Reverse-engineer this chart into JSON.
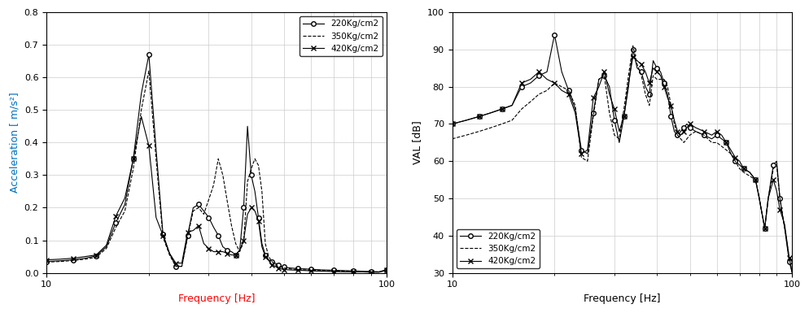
{
  "left": {
    "title": "",
    "xlabel": "Frequency [Hz]",
    "ylabel": "Acceleration [ m/s²]",
    "ylabel_color": "#0070c0",
    "xlabel_color": "#ff0000",
    "xlim": [
      10,
      100
    ],
    "ylim": [
      0,
      0.8
    ],
    "yticks": [
      0,
      0.1,
      0.2,
      0.3,
      0.4,
      0.5,
      0.6,
      0.7,
      0.8
    ],
    "legend": [
      "220Kg/cm2",
      "350Kg/cm2",
      "420Kg/cm2"
    ],
    "series": {
      "s220": {
        "x": [
          10,
          11,
          12,
          13,
          14,
          15,
          16,
          17,
          18,
          19,
          20,
          21,
          22,
          23,
          24,
          25,
          26,
          27,
          28,
          29,
          30,
          31,
          32,
          33,
          34,
          35,
          36,
          37,
          38,
          39,
          40,
          41,
          42,
          43,
          44,
          45,
          46,
          47,
          48,
          49,
          50,
          52,
          55,
          58,
          60,
          65,
          70,
          75,
          80,
          85,
          90,
          95,
          100
        ],
        "y": [
          0.035,
          0.037,
          0.04,
          0.045,
          0.052,
          0.08,
          0.155,
          0.21,
          0.35,
          0.55,
          0.67,
          0.38,
          0.12,
          0.06,
          0.02,
          0.02,
          0.115,
          0.2,
          0.21,
          0.19,
          0.17,
          0.14,
          0.115,
          0.08,
          0.07,
          0.065,
          0.055,
          0.07,
          0.2,
          0.45,
          0.3,
          0.25,
          0.17,
          0.09,
          0.055,
          0.04,
          0.035,
          0.03,
          0.025,
          0.02,
          0.018,
          0.015,
          0.013,
          0.012,
          0.011,
          0.009,
          0.008,
          0.007,
          0.006,
          0.005,
          0.004,
          0.003,
          0.01
        ],
        "style": "-",
        "marker": "o",
        "color": "#000000"
      },
      "s350": {
        "x": [
          10,
          11,
          12,
          13,
          14,
          15,
          16,
          17,
          18,
          19,
          20,
          21,
          22,
          23,
          24,
          25,
          26,
          27,
          28,
          29,
          30,
          31,
          32,
          33,
          34,
          35,
          36,
          37,
          38,
          39,
          40,
          41,
          42,
          43,
          44,
          45,
          46,
          47,
          48,
          49,
          50,
          52,
          55,
          58,
          60,
          65,
          70,
          75,
          80,
          85,
          90,
          95,
          100
        ],
        "y": [
          0.033,
          0.035,
          0.038,
          0.042,
          0.048,
          0.075,
          0.14,
          0.19,
          0.32,
          0.5,
          0.62,
          0.35,
          0.11,
          0.055,
          0.02,
          0.02,
          0.11,
          0.19,
          0.2,
          0.18,
          0.225,
          0.27,
          0.35,
          0.3,
          0.22,
          0.145,
          0.09,
          0.065,
          0.095,
          0.28,
          0.32,
          0.35,
          0.33,
          0.25,
          0.09,
          0.05,
          0.035,
          0.025,
          0.02,
          0.018,
          0.015,
          0.012,
          0.01,
          0.009,
          0.008,
          0.007,
          0.006,
          0.005,
          0.004,
          0.004,
          0.003,
          0.003,
          0.008
        ],
        "style": "--",
        "marker": null,
        "color": "#000000"
      },
      "s420": {
        "x": [
          10,
          11,
          12,
          13,
          14,
          15,
          16,
          17,
          18,
          19,
          20,
          21,
          22,
          23,
          24,
          25,
          26,
          27,
          28,
          29,
          30,
          31,
          32,
          33,
          34,
          35,
          36,
          37,
          38,
          39,
          40,
          41,
          42,
          43,
          44,
          45,
          46,
          47,
          48,
          49,
          50,
          52,
          55,
          58,
          60,
          65,
          70,
          75,
          80,
          85,
          90,
          95,
          100
        ],
        "y": [
          0.04,
          0.042,
          0.045,
          0.05,
          0.055,
          0.085,
          0.175,
          0.23,
          0.35,
          0.48,
          0.39,
          0.17,
          0.115,
          0.06,
          0.03,
          0.03,
          0.125,
          0.13,
          0.145,
          0.09,
          0.075,
          0.065,
          0.065,
          0.065,
          0.06,
          0.055,
          0.055,
          0.07,
          0.1,
          0.18,
          0.2,
          0.19,
          0.16,
          0.08,
          0.05,
          0.038,
          0.025,
          0.02,
          0.015,
          0.012,
          0.01,
          0.009,
          0.008,
          0.007,
          0.006,
          0.005,
          0.004,
          0.003,
          0.003,
          0.003,
          0.002,
          0.002,
          0.008
        ],
        "style": "-",
        "marker": "x",
        "color": "#000000"
      }
    }
  },
  "right": {
    "title": "",
    "xlabel": "Frequency [Hz]",
    "xlabel_color": "#000000",
    "ylabel": "VAL [dB]",
    "ylabel_color": "#000000",
    "xlim": [
      10,
      100
    ],
    "ylim": [
      30,
      100
    ],
    "yticks": [
      30,
      40,
      50,
      60,
      70,
      80,
      90,
      100
    ],
    "legend": [
      "220Kg/cm2",
      "350Kg/cm2",
      "420Kg/cm2"
    ],
    "series": {
      "s220": {
        "x": [
          10,
          11,
          12,
          13,
          14,
          15,
          16,
          17,
          18,
          19,
          20,
          21,
          22,
          23,
          24,
          25,
          26,
          27,
          28,
          29,
          30,
          31,
          32,
          33,
          34,
          35,
          36,
          37,
          38,
          39,
          40,
          41,
          42,
          43,
          44,
          45,
          46,
          47,
          48,
          49,
          50,
          52,
          55,
          58,
          60,
          62,
          64,
          66,
          68,
          70,
          72,
          75,
          78,
          80,
          83,
          85,
          88,
          90,
          92,
          95,
          98,
          100
        ],
        "y": [
          70,
          71,
          72,
          73,
          74,
          75,
          80,
          81,
          83,
          84,
          94,
          84,
          79,
          74,
          63,
          62,
          73,
          82,
          83,
          80,
          71,
          65,
          72,
          80,
          90,
          85,
          84,
          80,
          78,
          87,
          85,
          84,
          81,
          78,
          72,
          68,
          67,
          68,
          69,
          70,
          69,
          68,
          67,
          66,
          67,
          66,
          65,
          62,
          60,
          59,
          58,
          57,
          55,
          50,
          42,
          50,
          59,
          60,
          50,
          42,
          33,
          30
        ],
        "style": "-",
        "marker": "o",
        "color": "#000000"
      },
      "s350": {
        "x": [
          10,
          11,
          12,
          13,
          14,
          15,
          16,
          17,
          18,
          19,
          20,
          21,
          22,
          23,
          24,
          25,
          26,
          27,
          28,
          29,
          30,
          31,
          32,
          33,
          34,
          35,
          36,
          37,
          38,
          39,
          40,
          41,
          42,
          43,
          44,
          45,
          46,
          47,
          48,
          49,
          50,
          52,
          55,
          58,
          60,
          62,
          64,
          66,
          68,
          70,
          72,
          75,
          78,
          80,
          83,
          85,
          88,
          90,
          92,
          95,
          98,
          100
        ],
        "y": [
          66,
          67,
          68,
          69,
          70,
          71,
          74,
          76,
          78,
          79,
          81,
          80,
          79,
          75,
          61,
          60,
          72,
          82,
          83,
          73,
          67,
          66,
          74,
          83,
          91,
          86,
          83,
          78,
          75,
          83,
          82,
          82,
          82,
          80,
          75,
          70,
          67,
          66,
          65,
          66,
          67,
          68,
          67,
          65,
          65,
          64,
          63,
          62,
          60,
          58,
          57,
          56,
          55,
          50,
          42,
          50,
          58,
          59,
          50,
          42,
          34,
          30
        ],
        "style": "--",
        "marker": null,
        "color": "#000000"
      },
      "s420": {
        "x": [
          10,
          11,
          12,
          13,
          14,
          15,
          16,
          17,
          18,
          19,
          20,
          21,
          22,
          23,
          24,
          25,
          26,
          27,
          28,
          29,
          30,
          31,
          32,
          33,
          34,
          35,
          36,
          37,
          38,
          39,
          40,
          41,
          42,
          43,
          44,
          45,
          46,
          47,
          48,
          49,
          50,
          52,
          55,
          58,
          60,
          62,
          64,
          66,
          68,
          70,
          72,
          75,
          78,
          80,
          83,
          85,
          88,
          90,
          92,
          95,
          98,
          100
        ],
        "y": [
          70,
          71,
          72,
          73,
          74,
          75,
          81,
          82,
          84,
          82,
          81,
          79,
          78,
          73,
          62,
          63,
          77,
          80,
          84,
          78,
          74,
          68,
          72,
          81,
          88,
          87,
          86,
          84,
          81,
          85,
          84,
          83,
          80,
          77,
          75,
          71,
          68,
          67,
          68,
          69,
          70,
          69,
          68,
          67,
          68,
          67,
          65,
          63,
          61,
          60,
          58,
          57,
          55,
          50,
          42,
          50,
          55,
          52,
          47,
          43,
          34,
          30
        ],
        "style": "-",
        "marker": "x",
        "color": "#000000"
      }
    }
  }
}
